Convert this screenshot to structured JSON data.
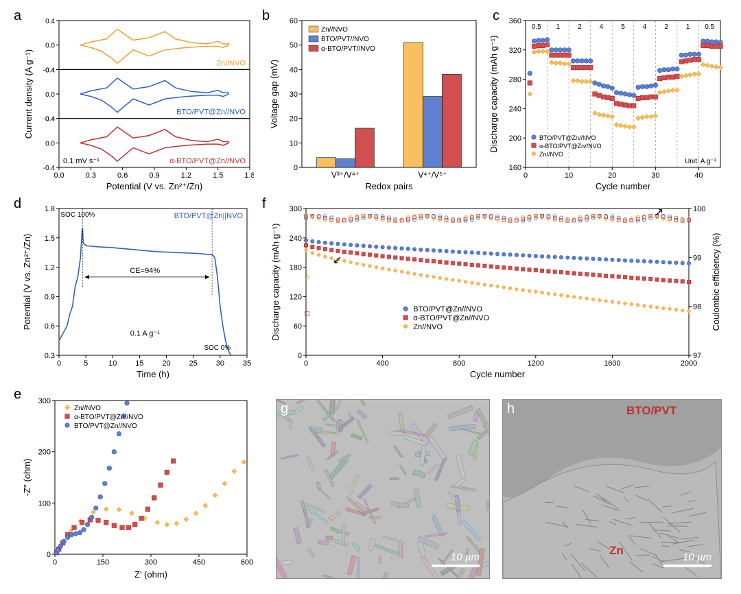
{
  "colors": {
    "orange": "#f0a030",
    "orange_fill": "#f8c060",
    "blue": "#3060c0",
    "blue_fill": "#6080d0",
    "red": "#c03030",
    "red_fill": "#d05050",
    "axis": "#000000",
    "grid": "#dddddd",
    "bg": "#ffffff"
  },
  "panel_a": {
    "label": "a",
    "type": "stacked_cv",
    "xlabel": "Potential (V vs. Zn²⁺/Zn)",
    "ylabel": "Current density (A g⁻¹)",
    "xlim": [
      0.0,
      1.8
    ],
    "xtick_step": 0.3,
    "ylim": [
      -0.4,
      0.4
    ],
    "ytick_step": 0.4,
    "scan_rate": "0.1 mV s⁻¹",
    "series": [
      {
        "name": "Zn//NVO",
        "color": "#f0a030"
      },
      {
        "name": "BTO/PVT@Zn//NVO",
        "color": "#3060c0"
      },
      {
        "name": "α-BTO/PVT@Zn//NVO",
        "color": "#c03030"
      }
    ],
    "curve": [
      [
        0.2,
        0
      ],
      [
        0.3,
        0.05
      ],
      [
        0.45,
        0.1
      ],
      [
        0.55,
        0.26
      ],
      [
        0.6,
        0.2
      ],
      [
        0.7,
        0.08
      ],
      [
        0.85,
        0.12
      ],
      [
        1.0,
        0.22
      ],
      [
        1.1,
        0.1
      ],
      [
        1.25,
        0.04
      ],
      [
        1.4,
        0.02
      ],
      [
        1.5,
        0.06
      ],
      [
        1.55,
        0.02
      ],
      [
        1.6,
        0.02
      ],
      [
        1.6,
        0.0
      ],
      [
        1.55,
        -0.04
      ],
      [
        1.5,
        -0.02
      ],
      [
        1.4,
        -0.02
      ],
      [
        1.2,
        -0.04
      ],
      [
        1.0,
        -0.08
      ],
      [
        0.85,
        -0.18
      ],
      [
        0.7,
        -0.08
      ],
      [
        0.55,
        -0.3
      ],
      [
        0.5,
        -0.22
      ],
      [
        0.4,
        -0.1
      ],
      [
        0.3,
        -0.04
      ],
      [
        0.2,
        0
      ]
    ]
  },
  "panel_b": {
    "label": "b",
    "type": "bar",
    "xlabel": "Redox pairs",
    "ylabel": "Voltage gap (mV)",
    "ylim": [
      0,
      60
    ],
    "ytick_step": 10,
    "categories": [
      "V³⁺/V⁴⁺",
      "V⁴⁺/V⁵⁺"
    ],
    "series": [
      {
        "name": "Zn//NVO",
        "color": "#f8c060",
        "values": [
          4,
          51
        ]
      },
      {
        "name": "BTO/PVT//NVO",
        "color": "#6080d0",
        "values": [
          3.5,
          29
        ]
      },
      {
        "name": "α-BTO/PVT//NVO",
        "color": "#d05050",
        "values": [
          16,
          38
        ]
      }
    ],
    "bar_width": 0.22
  },
  "panel_c": {
    "label": "c",
    "type": "rate_scatter",
    "xlabel": "Cycle number",
    "ylabel": "Discharge capacity (mAh g⁻¹)",
    "xlim": [
      0,
      45
    ],
    "xtick_step": 10,
    "ylim": [
      160,
      360
    ],
    "ytick_step": 40,
    "rates": [
      "0.5",
      "1",
      "2",
      "4",
      "5",
      "4",
      "2",
      "1",
      "0.5"
    ],
    "unit_label": "Unit: A g⁻¹",
    "grid_x": [
      5,
      10,
      15,
      20,
      25,
      30,
      35,
      40
    ],
    "series": [
      {
        "name": "BTO/PVT@Zn//NVO",
        "marker": "circle",
        "color": "#6080d0",
        "stroke": "#3060c0",
        "data": [
          [
            1,
            288
          ],
          [
            2,
            332
          ],
          [
            3,
            333
          ],
          [
            4,
            333
          ],
          [
            5,
            334
          ],
          [
            6,
            320
          ],
          [
            7,
            320
          ],
          [
            8,
            320
          ],
          [
            9,
            320
          ],
          [
            10,
            320
          ],
          [
            11,
            305
          ],
          [
            12,
            305
          ],
          [
            13,
            305
          ],
          [
            14,
            305
          ],
          [
            15,
            305
          ],
          [
            16,
            275
          ],
          [
            17,
            273
          ],
          [
            18,
            271
          ],
          [
            19,
            270
          ],
          [
            20,
            268
          ],
          [
            21,
            262
          ],
          [
            22,
            261
          ],
          [
            23,
            260
          ],
          [
            24,
            259
          ],
          [
            25,
            258
          ],
          [
            26,
            269
          ],
          [
            27,
            270
          ],
          [
            28,
            270
          ],
          [
            29,
            271
          ],
          [
            30,
            272
          ],
          [
            31,
            292
          ],
          [
            32,
            293
          ],
          [
            33,
            293
          ],
          [
            34,
            294
          ],
          [
            35,
            294
          ],
          [
            36,
            313
          ],
          [
            37,
            313
          ],
          [
            38,
            314
          ],
          [
            39,
            314
          ],
          [
            40,
            314
          ],
          [
            41,
            332
          ],
          [
            42,
            332
          ],
          [
            43,
            331
          ],
          [
            44,
            331
          ],
          [
            45,
            330
          ]
        ]
      },
      {
        "name": "α-BTO/PVT@Zn//NVO",
        "marker": "square",
        "color": "#d05050",
        "stroke": "#c03030",
        "data": [
          [
            1,
            275
          ],
          [
            2,
            325
          ],
          [
            3,
            326
          ],
          [
            4,
            326
          ],
          [
            5,
            327
          ],
          [
            6,
            313
          ],
          [
            7,
            313
          ],
          [
            8,
            313
          ],
          [
            9,
            313
          ],
          [
            10,
            313
          ],
          [
            11,
            296
          ],
          [
            12,
            296
          ],
          [
            13,
            296
          ],
          [
            14,
            296
          ],
          [
            15,
            296
          ],
          [
            16,
            260
          ],
          [
            17,
            258
          ],
          [
            18,
            256
          ],
          [
            19,
            255
          ],
          [
            20,
            254
          ],
          [
            21,
            247
          ],
          [
            22,
            246
          ],
          [
            23,
            245
          ],
          [
            24,
            244
          ],
          [
            25,
            244
          ],
          [
            26,
            254
          ],
          [
            27,
            255
          ],
          [
            28,
            255
          ],
          [
            29,
            256
          ],
          [
            30,
            256
          ],
          [
            31,
            281
          ],
          [
            32,
            282
          ],
          [
            33,
            283
          ],
          [
            34,
            283
          ],
          [
            35,
            284
          ],
          [
            36,
            304
          ],
          [
            37,
            305
          ],
          [
            38,
            306
          ],
          [
            39,
            307
          ],
          [
            40,
            307
          ],
          [
            41,
            326
          ],
          [
            42,
            326
          ],
          [
            43,
            325
          ],
          [
            44,
            325
          ],
          [
            45,
            325
          ]
        ]
      },
      {
        "name": "Zn//NVO",
        "marker": "diamond",
        "color": "#f8c060",
        "stroke": "#f0a030",
        "data": [
          [
            1,
            260
          ],
          [
            2,
            317
          ],
          [
            3,
            318
          ],
          [
            4,
            318
          ],
          [
            5,
            318
          ],
          [
            6,
            303
          ],
          [
            7,
            302
          ],
          [
            8,
            302
          ],
          [
            9,
            301
          ],
          [
            10,
            301
          ],
          [
            11,
            278
          ],
          [
            12,
            278
          ],
          [
            13,
            277
          ],
          [
            14,
            277
          ],
          [
            15,
            277
          ],
          [
            16,
            234
          ],
          [
            17,
            232
          ],
          [
            18,
            231
          ],
          [
            19,
            230
          ],
          [
            20,
            229
          ],
          [
            21,
            218
          ],
          [
            22,
            217
          ],
          [
            23,
            216
          ],
          [
            24,
            215
          ],
          [
            25,
            215
          ],
          [
            26,
            227
          ],
          [
            27,
            228
          ],
          [
            28,
            229
          ],
          [
            29,
            229
          ],
          [
            30,
            230
          ],
          [
            31,
            262
          ],
          [
            32,
            263
          ],
          [
            33,
            264
          ],
          [
            34,
            265
          ],
          [
            35,
            265
          ],
          [
            36,
            284
          ],
          [
            37,
            285
          ],
          [
            38,
            286
          ],
          [
            39,
            287
          ],
          [
            40,
            287
          ],
          [
            41,
            300
          ],
          [
            42,
            299
          ],
          [
            43,
            298
          ],
          [
            44,
            297
          ],
          [
            45,
            296
          ]
        ]
      }
    ]
  },
  "panel_d": {
    "label": "d",
    "type": "line",
    "xlabel": "Time (h)",
    "ylabel": "Potential (V vs. Zn²⁺/Zn)",
    "xlim": [
      0,
      35
    ],
    "xtick_step": 5,
    "ylim": [
      0.3,
      1.8
    ],
    "ytick_step": 0.3,
    "annotations": {
      "soc100": "SOC 100%",
      "soc0": "SOC 0%",
      "ce": "CE=94%",
      "rate": "0.1 A g⁻¹",
      "series": "BTO/PVT@Zn||NVO"
    },
    "color": "#3060c0",
    "curve": [
      [
        0,
        0.45
      ],
      [
        1,
        0.55
      ],
      [
        1.5,
        0.6
      ],
      [
        2,
        0.72
      ],
      [
        2.5,
        0.8
      ],
      [
        3,
        1.0
      ],
      [
        3.5,
        1.1
      ],
      [
        4,
        1.3
      ],
      [
        4.3,
        1.58
      ],
      [
        4.4,
        1.6
      ],
      [
        4.5,
        1.45
      ],
      [
        5,
        1.42
      ],
      [
        7,
        1.41
      ],
      [
        10,
        1.4
      ],
      [
        14,
        1.38
      ],
      [
        18,
        1.36
      ],
      [
        22,
        1.35
      ],
      [
        26,
        1.34
      ],
      [
        28,
        1.33
      ],
      [
        28.5,
        1.33
      ],
      [
        29,
        1.3
      ],
      [
        29.5,
        1.1
      ],
      [
        30,
        0.8
      ],
      [
        30.5,
        0.6
      ],
      [
        31,
        0.45
      ],
      [
        31.5,
        0.35
      ],
      [
        32,
        0.3
      ]
    ]
  },
  "panel_e": {
    "label": "e",
    "type": "nyquist_scatter",
    "xlabel": "Z' (ohm)",
    "ylabel": "-Z'' (ohm)",
    "xlim": [
      0,
      600
    ],
    "xtick_step": 150,
    "ylim": [
      0,
      300
    ],
    "ytick_step": 100,
    "series": [
      {
        "name": "Zn//NVO",
        "marker": "diamond",
        "color": "#f8c060",
        "stroke": "#f0a030",
        "data": [
          [
            5,
            3
          ],
          [
            15,
            10
          ],
          [
            30,
            25
          ],
          [
            50,
            45
          ],
          [
            80,
            65
          ],
          [
            120,
            82
          ],
          [
            160,
            88
          ],
          [
            200,
            87
          ],
          [
            240,
            80
          ],
          [
            280,
            70
          ],
          [
            320,
            62
          ],
          [
            350,
            58
          ],
          [
            380,
            60
          ],
          [
            410,
            68
          ],
          [
            440,
            80
          ],
          [
            470,
            95
          ],
          [
            500,
            115
          ],
          [
            530,
            138
          ],
          [
            560,
            162
          ],
          [
            590,
            180
          ]
        ]
      },
      {
        "name": "α-BTO/PVT@Zn//NVO",
        "marker": "square",
        "color": "#d05050",
        "stroke": "#c03030",
        "data": [
          [
            5,
            3
          ],
          [
            12,
            10
          ],
          [
            25,
            22
          ],
          [
            40,
            38
          ],
          [
            60,
            52
          ],
          [
            85,
            62
          ],
          [
            110,
            67
          ],
          [
            135,
            66
          ],
          [
            160,
            62
          ],
          [
            185,
            56
          ],
          [
            210,
            52
          ],
          [
            230,
            52
          ],
          [
            250,
            58
          ],
          [
            270,
            70
          ],
          [
            290,
            88
          ],
          [
            310,
            110
          ],
          [
            330,
            135
          ],
          [
            350,
            160
          ],
          [
            370,
            182
          ]
        ]
      },
      {
        "name": "BTO/PVT@Zn//NVO",
        "marker": "circle",
        "color": "#6080d0",
        "stroke": "#3060c0",
        "data": [
          [
            5,
            3
          ],
          [
            10,
            8
          ],
          [
            18,
            16
          ],
          [
            28,
            25
          ],
          [
            40,
            33
          ],
          [
            52,
            38
          ],
          [
            65,
            40
          ],
          [
            78,
            42
          ],
          [
            90,
            48
          ],
          [
            102,
            58
          ],
          [
            115,
            72
          ],
          [
            128,
            90
          ],
          [
            142,
            112
          ],
          [
            156,
            138
          ],
          [
            170,
            168
          ],
          [
            185,
            200
          ],
          [
            200,
            235
          ],
          [
            215,
            270
          ],
          [
            225,
            295
          ]
        ]
      }
    ]
  },
  "panel_f": {
    "label": "f",
    "type": "cycling_dual_axis",
    "xlabel": "Cycle number",
    "ylabel": "Discharge capacity (mAh g⁻¹)",
    "ylabel2": "Coulombic efficiency (%)",
    "xlim": [
      0,
      2000
    ],
    "xtick_step": 400,
    "ylim": [
      0,
      300
    ],
    "ytick_step": 60,
    "ylim2": [
      97,
      100
    ],
    "ytick2_step": 1,
    "series_cap": [
      {
        "name": "BTO/PVT@Zn//NVO",
        "marker": "circle",
        "color": "#6080d0",
        "stroke": "#3060c0",
        "start": 235,
        "end": 188
      },
      {
        "name": "α-BTO/PVT@Zn//NVO",
        "marker": "square",
        "color": "#d05050",
        "stroke": "#c03030",
        "start": 225,
        "end": 150
      },
      {
        "name": "Zn//NVO",
        "marker": "diamond",
        "color": "#f8c060",
        "stroke": "#f0a030",
        "start": 215,
        "end": 90
      }
    ],
    "ce_level": 99.8,
    "first_cycles": [
      [
        5,
        160
      ],
      [
        5,
        85
      ]
    ]
  },
  "panel_g": {
    "label": "g",
    "type": "sem",
    "scale": "10 µm"
  },
  "panel_h": {
    "label": "h",
    "type": "sem",
    "scale": "10 µm",
    "labels": {
      "top": "BTO/PVT",
      "bottom": "Zn"
    },
    "label_color": "#c03030"
  }
}
